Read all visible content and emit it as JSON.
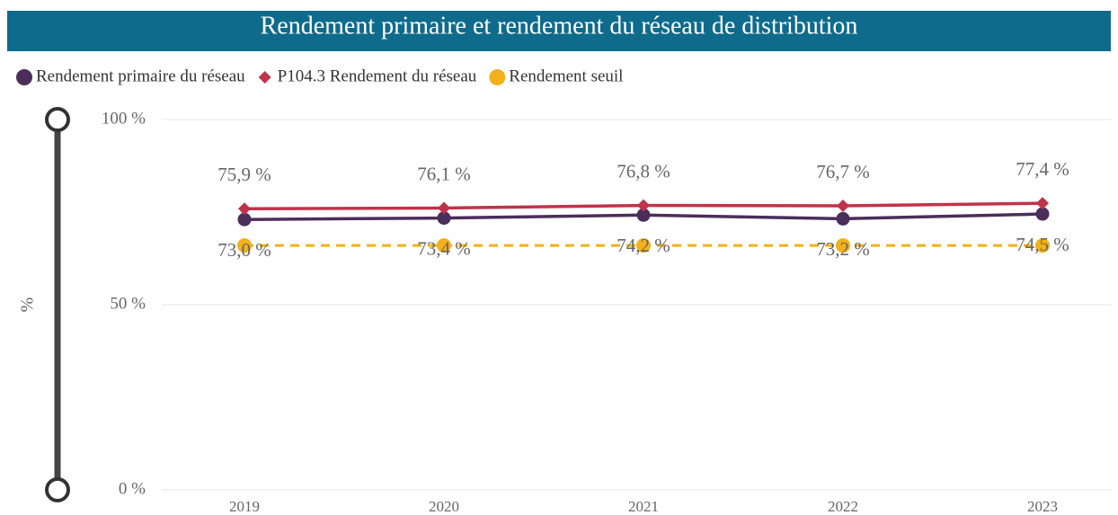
{
  "chart_data": {
    "type": "line",
    "title": "Rendement primaire et rendement du réseau de distribution",
    "y_label": "%",
    "categories": [
      "2019",
      "2020",
      "2021",
      "2022",
      "2023"
    ],
    "series": [
      {
        "name": "Rendement primaire du réseau",
        "color": "#4b2e5a",
        "marker": "circle",
        "dashed": false,
        "values": [
          73.0,
          73.4,
          74.2,
          73.2,
          74.5
        ],
        "value_labels": [
          "73,0 %",
          "73,4 %",
          "74,2 %",
          "73,2 %",
          "74,5 %"
        ],
        "label_position": "below"
      },
      {
        "name": "P104.3 Rendement du réseau",
        "color": "#c0334a",
        "marker": "diamond",
        "dashed": false,
        "values": [
          75.9,
          76.1,
          76.8,
          76.7,
          77.4
        ],
        "value_labels": [
          "75,9 %",
          "76,1 %",
          "76,8 %",
          "76,7 %",
          "77,4 %"
        ],
        "label_position": "above"
      },
      {
        "name": "Rendement seuil",
        "color": "#f2b11b",
        "marker": "circle",
        "dashed": true,
        "values": [
          66,
          66,
          66,
          66,
          66
        ]
      }
    ],
    "ylim": [
      0,
      100
    ],
    "yticks": [
      {
        "value": 0,
        "label": "0 %"
      },
      {
        "value": 50,
        "label": "50 %"
      },
      {
        "value": 100,
        "label": "100 %"
      }
    ],
    "grid": true
  }
}
